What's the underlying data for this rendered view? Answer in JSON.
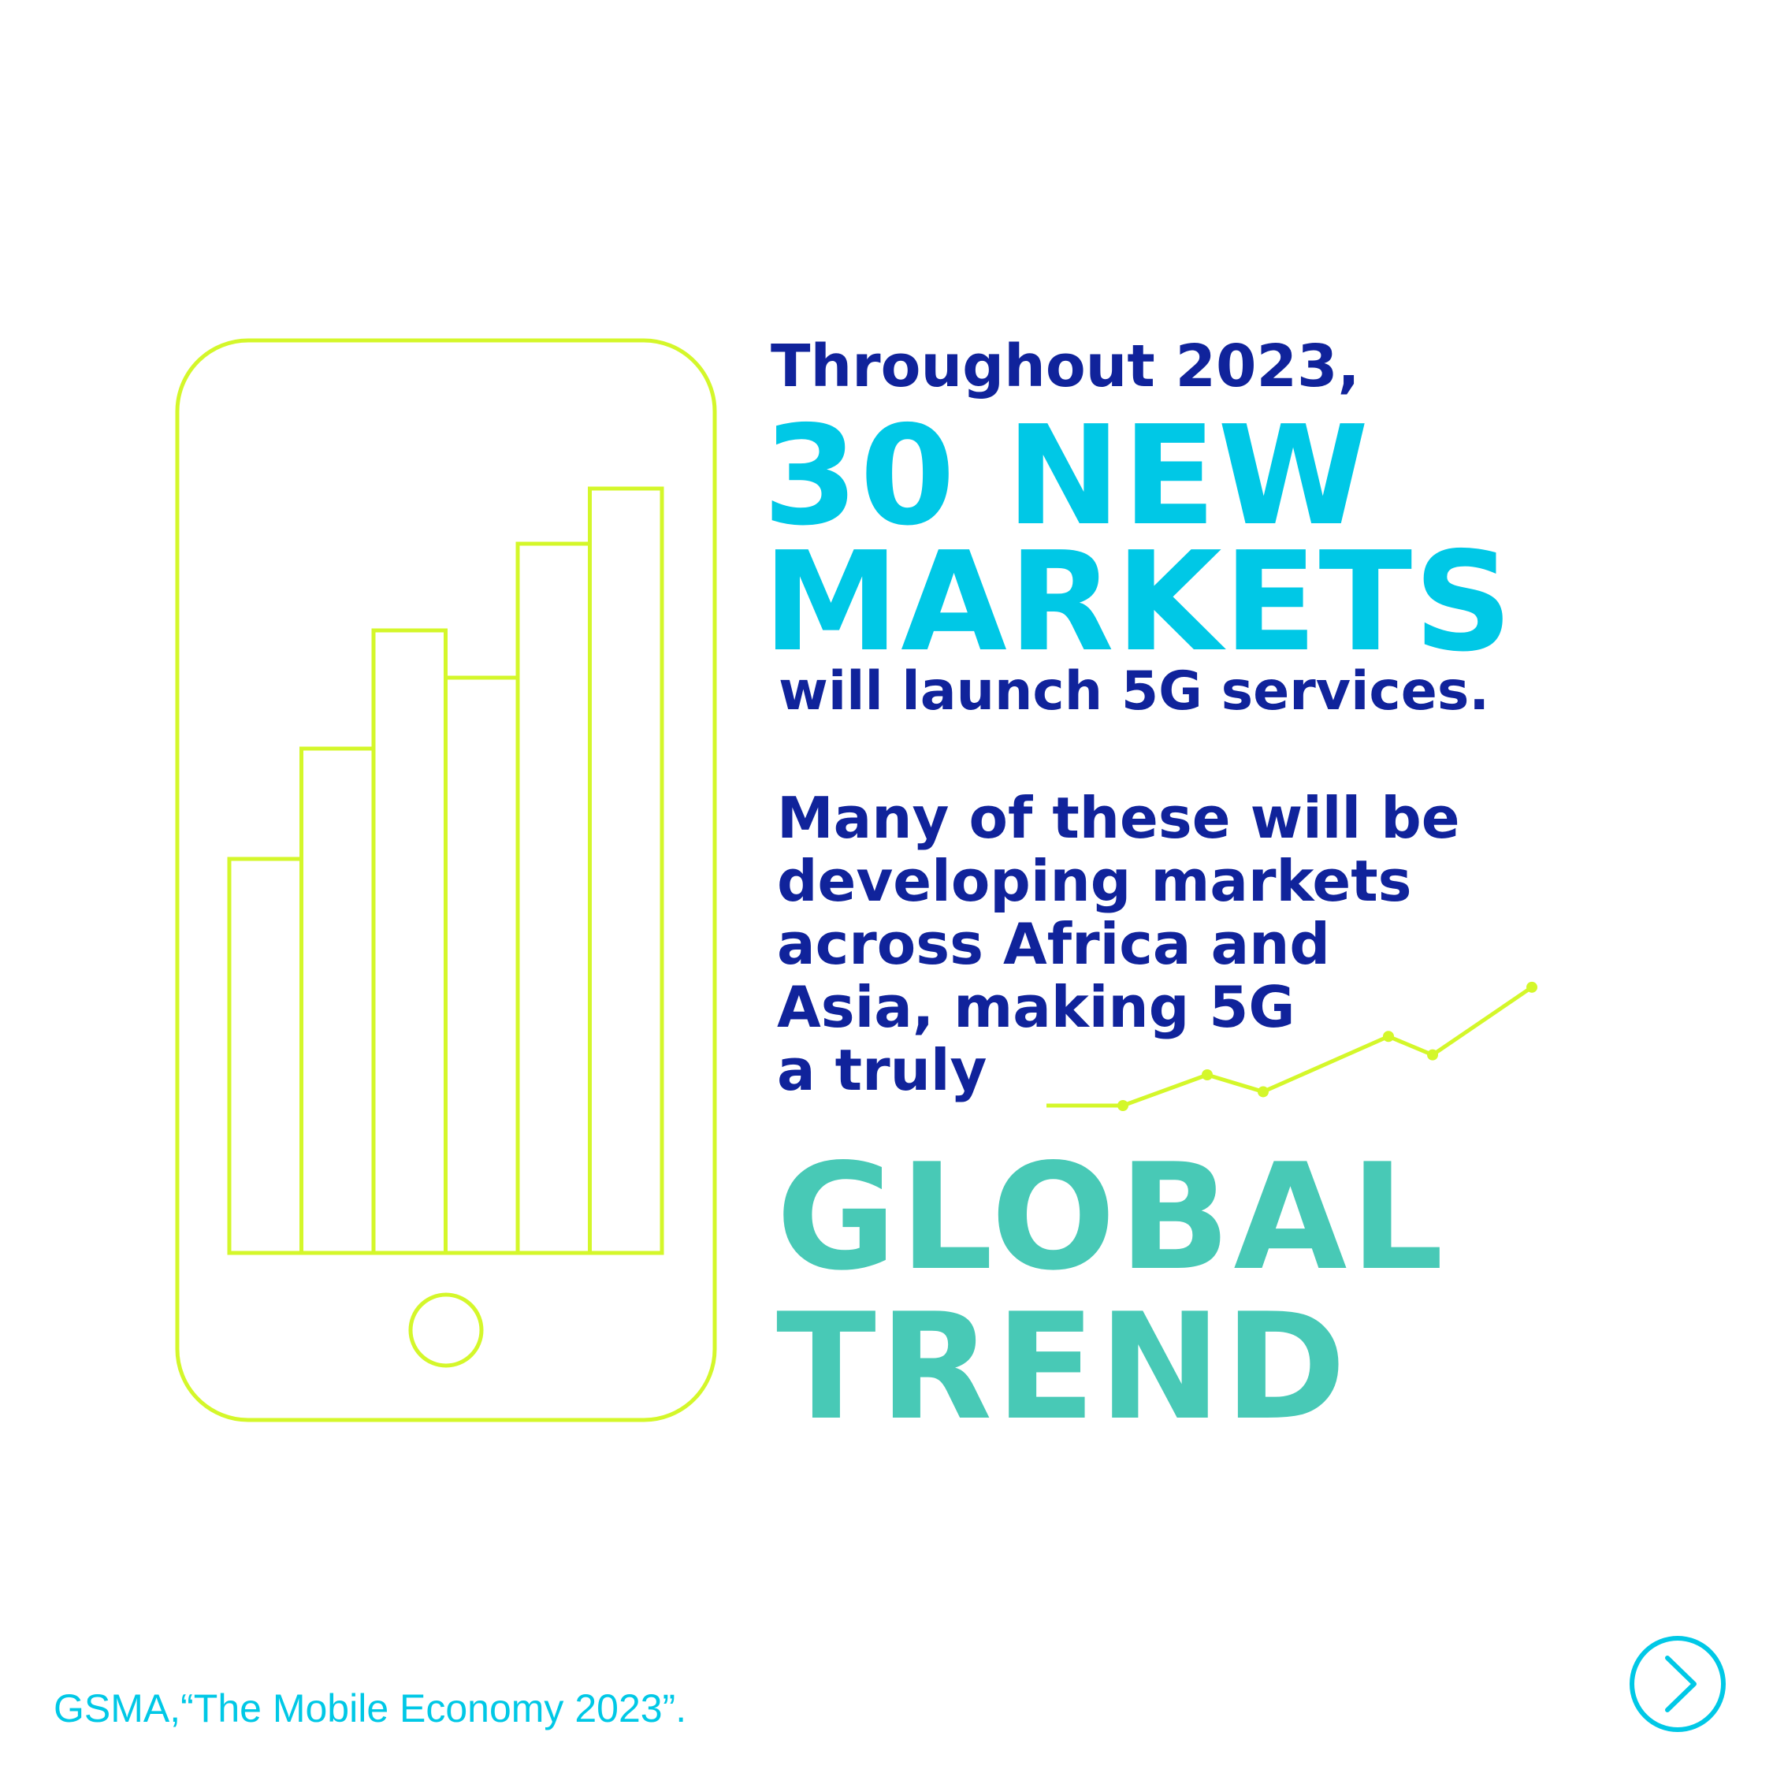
{
  "slide": {
    "headline_intro": "Throughout 2023,",
    "headline_big_1": "30 NEW",
    "headline_big_2": "MARKETS",
    "headline_outro": "will launch 5G services.",
    "paragraph_lines": [
      "Many of these will be",
      "developing markets",
      "across Africa and",
      "Asia, making 5G",
      "a truly"
    ],
    "emphasis_1": "GLOBAL",
    "emphasis_2": "TREND",
    "source": "GSMA,“The Mobile Economy 2023”."
  },
  "illustration": {
    "icon": "smartphone-bar-chart-icon",
    "bar_levels": [
      0.5,
      0.64,
      0.79,
      0.73,
      0.9,
      0.97
    ],
    "trend_icon": "trend-line-icon",
    "trend_values": [
      0,
      0.2,
      0.09,
      0.45,
      0.33,
      0.77
    ],
    "outline_color": "#d4f72a"
  },
  "navigation": {
    "next_icon": "chevron-right-icon",
    "ring_color": "#00c8e6"
  },
  "colors": {
    "navy": "#10239b",
    "cyan": "#00c8e6",
    "teal": "#48c9b6"
  }
}
